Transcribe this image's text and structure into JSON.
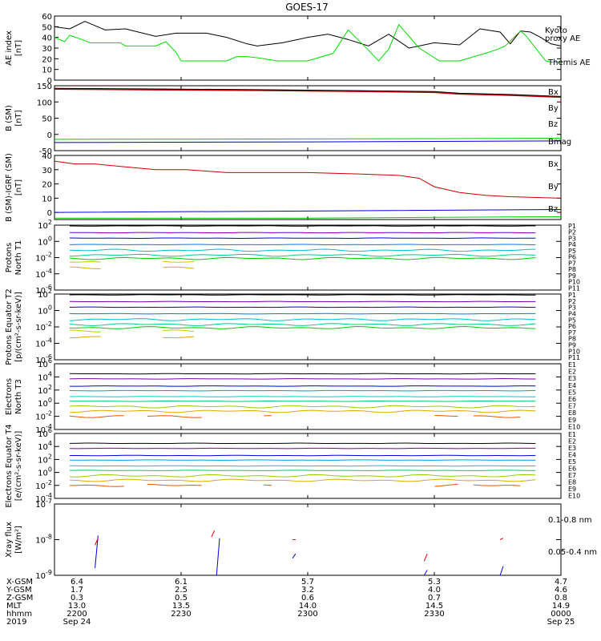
{
  "title": "GOES-17",
  "chart_data": [
    {
      "type": "line",
      "ylabel": "AE index [nT]",
      "ylim": [
        0,
        60
      ],
      "yticks": [
        0,
        10,
        20,
        30,
        40,
        50,
        60
      ],
      "series": [
        {
          "name": "Themis AE",
          "color": "#000000",
          "x": [
            0,
            3,
            6,
            10,
            14,
            20,
            24,
            30,
            34,
            38,
            40,
            45,
            50,
            54,
            58,
            62,
            66,
            70,
            75,
            80,
            84,
            88,
            90,
            92,
            94,
            96,
            98,
            100
          ],
          "y": [
            50,
            48,
            55,
            47,
            48,
            41,
            44,
            44,
            40,
            34,
            32,
            35,
            40,
            43,
            38,
            32,
            43,
            30,
            35,
            33,
            48,
            45,
            34,
            46,
            45,
            40,
            34,
            32
          ]
        },
        {
          "name": "Kyoto proxy AE",
          "color": "#00dd00",
          "x": [
            0,
            2,
            3,
            6,
            7,
            10,
            13,
            14,
            20,
            22,
            24,
            25,
            30,
            34,
            36,
            38,
            40,
            44,
            50,
            55,
            58,
            62,
            64,
            66,
            68,
            72,
            76,
            80,
            85,
            87,
            89,
            92,
            93,
            95,
            97,
            98,
            100
          ],
          "y": [
            40,
            36,
            42,
            37,
            35,
            35,
            35,
            32,
            32,
            36,
            26,
            18,
            18,
            18,
            22,
            22,
            21,
            18,
            18,
            25,
            47,
            28,
            18,
            29,
            52,
            30,
            18,
            18,
            25,
            28,
            32,
            46,
            42,
            30,
            18,
            17,
            17
          ]
        }
      ]
    },
    {
      "type": "line",
      "ylabel": "B (SM) [nT]",
      "ylim": [
        -50,
        150
      ],
      "yticks": [
        -50,
        0,
        50,
        100,
        150
      ],
      "series": [
        {
          "name": "Bx",
          "color": "#0000dd",
          "x": [
            0,
            50,
            100
          ],
          "y": [
            -25,
            -23,
            -20
          ]
        },
        {
          "name": "By",
          "color": "#00cc00",
          "x": [
            0,
            50,
            100
          ],
          "y": [
            -15,
            -14,
            -12
          ]
        },
        {
          "name": "Bz",
          "color": "#cc0000",
          "x": [
            0,
            20,
            40,
            60,
            75,
            80,
            90,
            100
          ],
          "y": [
            140,
            138,
            136,
            133,
            130,
            125,
            121,
            115
          ]
        },
        {
          "name": "Bmag",
          "color": "#000000",
          "x": [
            0,
            20,
            40,
            60,
            75,
            80,
            90,
            100
          ],
          "y": [
            142,
            140,
            138,
            135,
            132,
            127,
            123,
            117
          ]
        }
      ]
    },
    {
      "type": "line",
      "ylabel": "B (SM)-IGRF (SM) [nT]",
      "ylim": [
        -5,
        40
      ],
      "yticks": [
        0,
        10,
        20,
        30,
        40
      ],
      "series": [
        {
          "name": "Bx",
          "color": "#0000dd",
          "x": [
            0,
            50,
            100
          ],
          "y": [
            0,
            1,
            2
          ]
        },
        {
          "name": "By",
          "color": "#00cc00",
          "x": [
            0,
            50,
            100
          ],
          "y": [
            -4,
            -4,
            -3
          ]
        },
        {
          "name": "Bz",
          "color": "#cc0000",
          "x": [
            0,
            4,
            8,
            14,
            20,
            26,
            34,
            50,
            60,
            68,
            72,
            75,
            80,
            85,
            90,
            100
          ],
          "y": [
            36,
            34,
            34,
            32,
            30,
            30,
            28,
            28,
            27,
            26,
            24,
            18,
            14,
            12,
            11,
            10
          ]
        }
      ]
    },
    {
      "type": "line",
      "ylabel": "Protons North T1",
      "scale": "log",
      "ylim": [
        1e-06,
        100
      ],
      "ytick_labels": [
        "10^2",
        "10^0",
        "10^-2",
        "10^-4",
        "10^-6"
      ],
      "legend": [
        "P1",
        "P2",
        "P3",
        "P4",
        "P5",
        "P6",
        "P7",
        "P8",
        "P9",
        "P10",
        "P11"
      ]
    },
    {
      "type": "line",
      "ylabel": "Protons Equator T2 [p/(cm²-s-sr-keV)]",
      "scale": "log",
      "ylim": [
        1e-06,
        100
      ],
      "ytick_labels": [
        "10^2",
        "10^0",
        "10^-2",
        "10^-4",
        "10^-6"
      ],
      "legend": [
        "P1",
        "P2",
        "P3",
        "P4",
        "P5",
        "P6",
        "P7",
        "P8",
        "P9",
        "P10",
        "P11"
      ]
    },
    {
      "type": "line",
      "ylabel": "Electrons North T3",
      "scale": "log",
      "ylim": [
        0.0001,
        1000000.0
      ],
      "ytick_labels": [
        "10^6",
        "10^4",
        "10^2",
        "10^0",
        "10^-2",
        "10^-4"
      ],
      "legend": [
        "E1",
        "E2",
        "E3",
        "E4",
        "E5",
        "E6",
        "E7",
        "E8",
        "E9",
        "E10"
      ]
    },
    {
      "type": "line",
      "ylabel": "Electrons Equator T4 [e/(cm²-s-sr-keV)]",
      "scale": "log",
      "ylim": [
        0.0001,
        1000000.0
      ],
      "ytick_labels": [
        "10^6",
        "10^4",
        "10^2",
        "10^0",
        "10^-2",
        "10^-4"
      ],
      "legend": [
        "E1",
        "E2",
        "E3",
        "E4",
        "E5",
        "E6",
        "E7",
        "E8",
        "E9",
        "E10"
      ]
    },
    {
      "type": "line",
      "ylabel": "Xray flux [W/m²]",
      "scale": "log",
      "ylim": [
        1e-09,
        1e-07
      ],
      "ytick_labels": [
        "10^-7",
        "10^-8",
        "10^-9"
      ],
      "series": [
        {
          "name": "0.1-0.8 nm",
          "color": "#dd0000"
        },
        {
          "name": "0.05-0.4 nm",
          "color": "#0000dd"
        }
      ]
    }
  ],
  "ephemeris": {
    "row_labels": [
      "X-GSM",
      "Y-GSM",
      "Z-GSM",
      "MLT",
      "hhmm",
      "2019"
    ],
    "columns": [
      {
        "values": [
          "6.4",
          "1.7",
          "0.3",
          "13.0",
          "2200",
          "Sep 24"
        ]
      },
      {
        "values": [
          "6.1",
          "2.5",
          "0.5",
          "13.5",
          "2230",
          ""
        ]
      },
      {
        "values": [
          "5.7",
          "3.2",
          "0.6",
          "14.0",
          "2300",
          ""
        ]
      },
      {
        "values": [
          "5.3",
          "4.0",
          "0.7",
          "14.5",
          "2330",
          ""
        ]
      },
      {
        "values": [
          "4.7",
          "4.6",
          "0.8",
          "14.9",
          "0000",
          "Sep 25"
        ]
      }
    ]
  }
}
